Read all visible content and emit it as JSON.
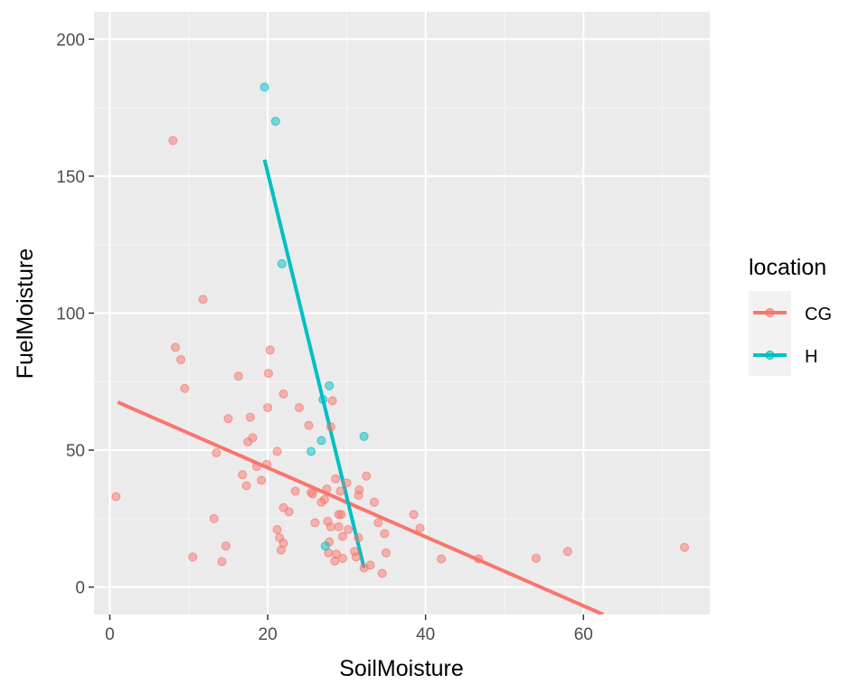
{
  "chart_data": {
    "type": "scatter",
    "title": "",
    "xlabel": "SoilMoisture",
    "ylabel": "FuelMoisture",
    "xlim": [
      -2,
      76
    ],
    "ylim": [
      -10,
      210
    ],
    "x_ticks": [
      "0",
      "20",
      "40",
      "60"
    ],
    "y_ticks": [
      "0",
      "50",
      "100",
      "150",
      "200"
    ],
    "grid": true,
    "legend": {
      "title": "location",
      "placement": "right"
    },
    "series": [
      {
        "name": "CG",
        "color": "#F8766D",
        "points": [
          [
            0.8,
            33
          ],
          [
            8,
            163
          ],
          [
            8.3,
            87.5
          ],
          [
            9,
            83
          ],
          [
            9.5,
            72.5
          ],
          [
            10.5,
            11
          ],
          [
            11.8,
            105
          ],
          [
            13.2,
            25
          ],
          [
            13.5,
            49
          ],
          [
            14.2,
            9.3
          ],
          [
            14.7,
            15
          ],
          [
            15,
            61.5
          ],
          [
            16.3,
            77
          ],
          [
            16.8,
            41
          ],
          [
            17.3,
            37
          ],
          [
            17.5,
            53
          ],
          [
            17.8,
            62
          ],
          [
            18.1,
            54.5
          ],
          [
            18.6,
            44
          ],
          [
            19.2,
            39
          ],
          [
            19.9,
            44.8
          ],
          [
            20,
            65.5
          ],
          [
            20.1,
            78
          ],
          [
            20.3,
            86.5
          ],
          [
            21.2,
            49.5
          ],
          [
            21.2,
            21
          ],
          [
            21.5,
            18
          ],
          [
            21.7,
            13.5
          ],
          [
            22,
            16
          ],
          [
            22,
            29
          ],
          [
            22,
            70.5
          ],
          [
            22.7,
            27.5
          ],
          [
            23.5,
            35
          ],
          [
            24,
            65.5
          ],
          [
            25.2,
            59
          ],
          [
            25.5,
            34.5
          ],
          [
            25.7,
            34
          ],
          [
            26,
            23.5
          ],
          [
            26.8,
            31
          ],
          [
            27.2,
            32
          ],
          [
            27.5,
            35.8
          ],
          [
            27.6,
            24
          ],
          [
            27.7,
            12.5
          ],
          [
            27.8,
            16.5
          ],
          [
            28,
            22
          ],
          [
            28,
            58.5
          ],
          [
            28.2,
            68
          ],
          [
            28.5,
            9.5
          ],
          [
            28.6,
            39.5
          ],
          [
            28.7,
            12
          ],
          [
            29,
            22
          ],
          [
            29,
            26.5
          ],
          [
            29.2,
            35
          ],
          [
            29.3,
            26.5
          ],
          [
            29.5,
            10.5
          ],
          [
            29.5,
            18.5
          ],
          [
            30,
            38
          ],
          [
            30.2,
            21
          ],
          [
            31,
            13
          ],
          [
            31.2,
            11
          ],
          [
            31.5,
            18
          ],
          [
            31.5,
            33.5
          ],
          [
            31.6,
            35.5
          ],
          [
            32.2,
            7
          ],
          [
            32.5,
            40.5
          ],
          [
            33,
            8
          ],
          [
            33.5,
            31
          ],
          [
            34,
            23.5
          ],
          [
            34.5,
            5
          ],
          [
            34.8,
            19.5
          ],
          [
            35,
            12.5
          ],
          [
            38.5,
            26.5
          ],
          [
            39.3,
            21.5
          ],
          [
            42,
            10.3
          ],
          [
            46.7,
            10.3
          ],
          [
            54,
            10.5
          ],
          [
            58,
            13
          ],
          [
            72.8,
            14.5
          ]
        ],
        "trend": [
          [
            1,
            67.5
          ],
          [
            62.5,
            -10
          ]
        ]
      },
      {
        "name": "H",
        "color": "#00BFC4",
        "points": [
          [
            19.6,
            182.5
          ],
          [
            21,
            170
          ],
          [
            21.8,
            118
          ],
          [
            25.5,
            49.5
          ],
          [
            26.8,
            53.5
          ],
          [
            27,
            68.5
          ],
          [
            27.3,
            15
          ],
          [
            27.8,
            73.5
          ],
          [
            32.2,
            55
          ]
        ],
        "trend": [
          [
            19.6,
            156
          ],
          [
            32.2,
            7
          ]
        ]
      }
    ]
  }
}
